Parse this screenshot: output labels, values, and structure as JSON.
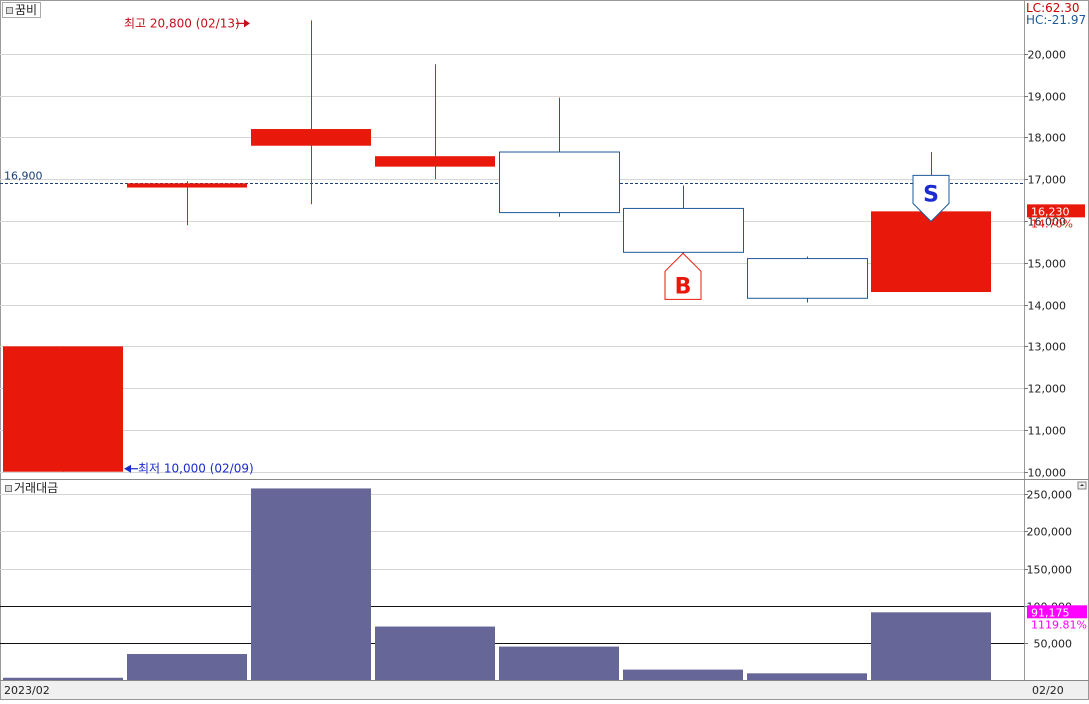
{
  "colors": {
    "up": "#E8190A",
    "down": "#1D5A9A",
    "volume": "#676699",
    "magenta": "#FF00FF",
    "axis_text": "#222222",
    "lc_text": "#CC0000",
    "hc_text": "#1D5A9A"
  },
  "header": {
    "stock_name": "꿈비",
    "lc_value": "LC:62.30",
    "hc_value": "HC:-21.97"
  },
  "chart_data": [
    {
      "type": "candlestick",
      "series_name": "꿈비",
      "candles": [
        {
          "open": 10000,
          "high": 13000,
          "low": 10000,
          "close": 13000
        },
        {
          "open": 16800,
          "high": 16950,
          "low": 15900,
          "close": 16900
        },
        {
          "open": 17800,
          "high": 20800,
          "low": 16400,
          "close": 18200
        },
        {
          "open": 17300,
          "high": 19750,
          "low": 17000,
          "close": 17550
        },
        {
          "open": 17650,
          "high": 18950,
          "low": 16100,
          "close": 16200
        },
        {
          "open": 16300,
          "high": 16850,
          "low": 15200,
          "close": 15250
        },
        {
          "open": 15100,
          "high": 15150,
          "low": 14050,
          "close": 14150
        },
        {
          "open": 14300,
          "high": 17650,
          "low": 14300,
          "close": 16230
        }
      ],
      "y_ticks": [
        10000,
        11000,
        12000,
        13000,
        14000,
        15000,
        16000,
        17000,
        18000,
        19000,
        20000
      ],
      "y_tick_labels": [
        "10,000",
        "11,000",
        "12,000",
        "13,000",
        "14,000",
        "15,000",
        "16,000",
        "17,000",
        "18,000",
        "19,000",
        "20,000"
      ],
      "ylim": [
        9850,
        21000
      ],
      "grid": true,
      "reference_line": {
        "value": 16900,
        "label": "16,900"
      },
      "high_annotation": {
        "text": "최고 20,800 (02/13)",
        "candle_index": 2,
        "value": 20800
      },
      "low_annotation": {
        "text": "최저 10,000 (02/09)",
        "candle_index": 0,
        "value": 10000
      },
      "signals": [
        {
          "label": "B",
          "candle_index": 5,
          "value": 15250,
          "side": "buy"
        },
        {
          "label": "S",
          "candle_index": 7,
          "value": 16230,
          "side": "sell"
        }
      ],
      "last_price": {
        "value": 16230,
        "label": "16,230",
        "change": "14.70%"
      }
    },
    {
      "type": "bar",
      "series_name": "거래대금",
      "values": [
        3000,
        35000,
        258000,
        72000,
        45000,
        14000,
        9000,
        91175
      ],
      "y_ticks": [
        50000,
        100000,
        150000,
        200000,
        250000
      ],
      "y_tick_labels": [
        "50,000",
        "100,000",
        "150,000",
        "200,000",
        "250,000"
      ],
      "ylim": [
        0,
        268000
      ],
      "grid": true,
      "reference_lines": [
        50000,
        100000
      ],
      "last_value": {
        "value": 91175,
        "label": "91,175",
        "change": "1119.81%"
      }
    }
  ],
  "x_axis": {
    "start_label": "2023/02",
    "end_label": "02/20"
  }
}
